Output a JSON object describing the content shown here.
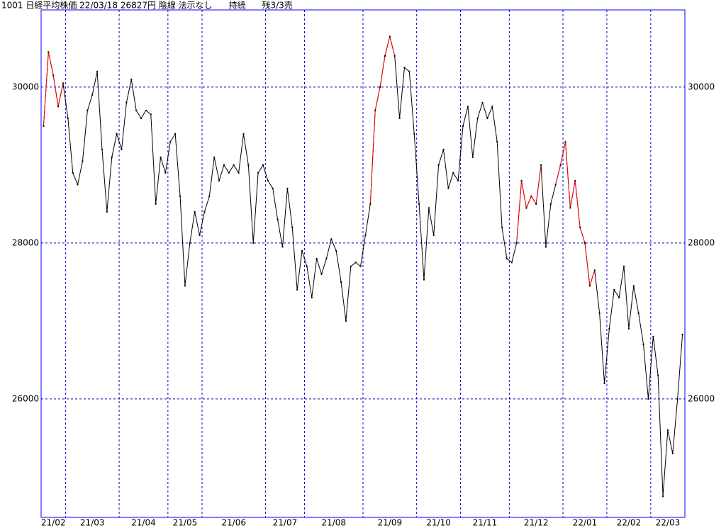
{
  "chart_data": {
    "type": "line",
    "title": "1001 日経平均株価 22/03/18 26827円 陰線 法示なし      持続      残3/3売",
    "ylim": [
      24480,
      30990
    ],
    "yticks": [
      26000,
      28000,
      30000
    ],
    "grid": true,
    "categories": [
      "21/02",
      "21/02",
      "21/02",
      "21/02",
      "21/02",
      "21/03",
      "21/03",
      "21/03",
      "21/03",
      "21/03",
      "21/03",
      "21/03",
      "21/03",
      "21/03",
      "21/03",
      "21/03",
      "21/04",
      "21/04",
      "21/04",
      "21/04",
      "21/04",
      "21/04",
      "21/04",
      "21/04",
      "21/04",
      "21/04",
      "21/05",
      "21/05",
      "21/05",
      "21/05",
      "21/05",
      "21/05",
      "21/05",
      "21/06",
      "21/06",
      "21/06",
      "21/06",
      "21/06",
      "21/06",
      "21/06",
      "21/06",
      "21/06",
      "21/06",
      "21/06",
      "21/06",
      "21/06",
      "21/07",
      "21/07",
      "21/07",
      "21/07",
      "21/07",
      "21/07",
      "21/07",
      "21/07",
      "21/08",
      "21/08",
      "21/08",
      "21/08",
      "21/08",
      "21/08",
      "21/08",
      "21/08",
      "21/08",
      "21/08",
      "21/08",
      "21/08",
      "21/09",
      "21/09",
      "21/09",
      "21/09",
      "21/09",
      "21/09",
      "21/09",
      "21/09",
      "21/09",
      "21/09",
      "21/09",
      "21/10",
      "21/10",
      "21/10",
      "21/10",
      "21/10",
      "21/10",
      "21/10",
      "21/10",
      "21/10",
      "21/11",
      "21/11",
      "21/11",
      "21/11",
      "21/11",
      "21/11",
      "21/11",
      "21/11",
      "21/11",
      "21/11",
      "21/12",
      "21/12",
      "21/12",
      "21/12",
      "21/12",
      "21/12",
      "21/12",
      "21/12",
      "21/12",
      "21/12",
      "21/12",
      "22/01",
      "22/01",
      "22/01",
      "22/01",
      "22/01",
      "22/01",
      "22/01",
      "22/01",
      "22/01",
      "22/02",
      "22/02",
      "22/02",
      "22/02",
      "22/02",
      "22/02",
      "22/02",
      "22/02",
      "22/02",
      "22/03",
      "22/03",
      "22/03",
      "22/03",
      "22/03",
      "22/03",
      "22/03"
    ],
    "series": [
      {
        "color": "#000000",
        "values": [
          29500,
          30450,
          30150,
          29750,
          30050,
          29600,
          28900,
          28750,
          29050,
          29700,
          29900,
          30200,
          29200,
          28400,
          29100,
          29400,
          29200,
          29800,
          30100,
          29700,
          29600,
          29700,
          29650,
          28500,
          29100,
          28900,
          29300,
          29400,
          28600,
          27450,
          28000,
          28400,
          28100,
          28400,
          28600,
          29100,
          28800,
          29000,
          28900,
          29000,
          28900,
          29400,
          29000,
          28000,
          28900,
          29000,
          28800,
          28700,
          28300,
          27950,
          28700,
          28200,
          27400,
          27900,
          27700,
          27300,
          27800,
          27600,
          27800,
          28050,
          27900,
          27500,
          27000,
          27700,
          27750,
          27700,
          28100,
          28500,
          29700,
          30000,
          30400,
          30650,
          30400,
          29600,
          30250,
          30200,
          29400,
          28500,
          27530,
          28450,
          28100,
          29000,
          29200,
          28700,
          28900,
          28800,
          29500,
          29750,
          29100,
          29600,
          29800,
          29600,
          29750,
          29300,
          28200,
          27800,
          27750,
          28000,
          28800,
          28450,
          28600,
          28500,
          29000,
          27950,
          28500,
          28750,
          29000,
          29300,
          28450,
          28800,
          28200,
          28000,
          27450,
          27650,
          27100,
          26200,
          26900,
          27400,
          27300,
          27700,
          26900,
          27450,
          27100,
          26700,
          26000,
          26800,
          26300,
          24750,
          25600,
          25300,
          26000,
          26827
        ]
      },
      {
        "color": "#ff0000",
        "values": [
          29500,
          30450,
          30150,
          29750,
          30050,
          null,
          null,
          null,
          null,
          null,
          null,
          null,
          null,
          null,
          null,
          null,
          null,
          null,
          null,
          null,
          null,
          null,
          null,
          null,
          null,
          null,
          null,
          null,
          null,
          null,
          null,
          null,
          null,
          null,
          null,
          null,
          null,
          null,
          null,
          null,
          null,
          null,
          null,
          null,
          null,
          null,
          null,
          null,
          null,
          null,
          null,
          null,
          null,
          null,
          null,
          null,
          null,
          null,
          null,
          null,
          null,
          null,
          null,
          null,
          null,
          null,
          null,
          28500,
          29700,
          30000,
          30400,
          30650,
          30400,
          null,
          null,
          null,
          null,
          null,
          null,
          null,
          null,
          null,
          null,
          null,
          null,
          null,
          null,
          null,
          null,
          null,
          null,
          null,
          null,
          null,
          null,
          null,
          null,
          28000,
          28800,
          28450,
          28600,
          28500,
          29000,
          null,
          null,
          28750,
          29000,
          29300,
          28450,
          28800,
          28200,
          28000,
          27450,
          27650,
          null,
          null,
          null,
          null,
          null,
          null,
          null,
          null,
          null,
          null,
          null,
          null,
          null,
          null,
          null,
          null,
          null,
          null
        ]
      }
    ]
  }
}
